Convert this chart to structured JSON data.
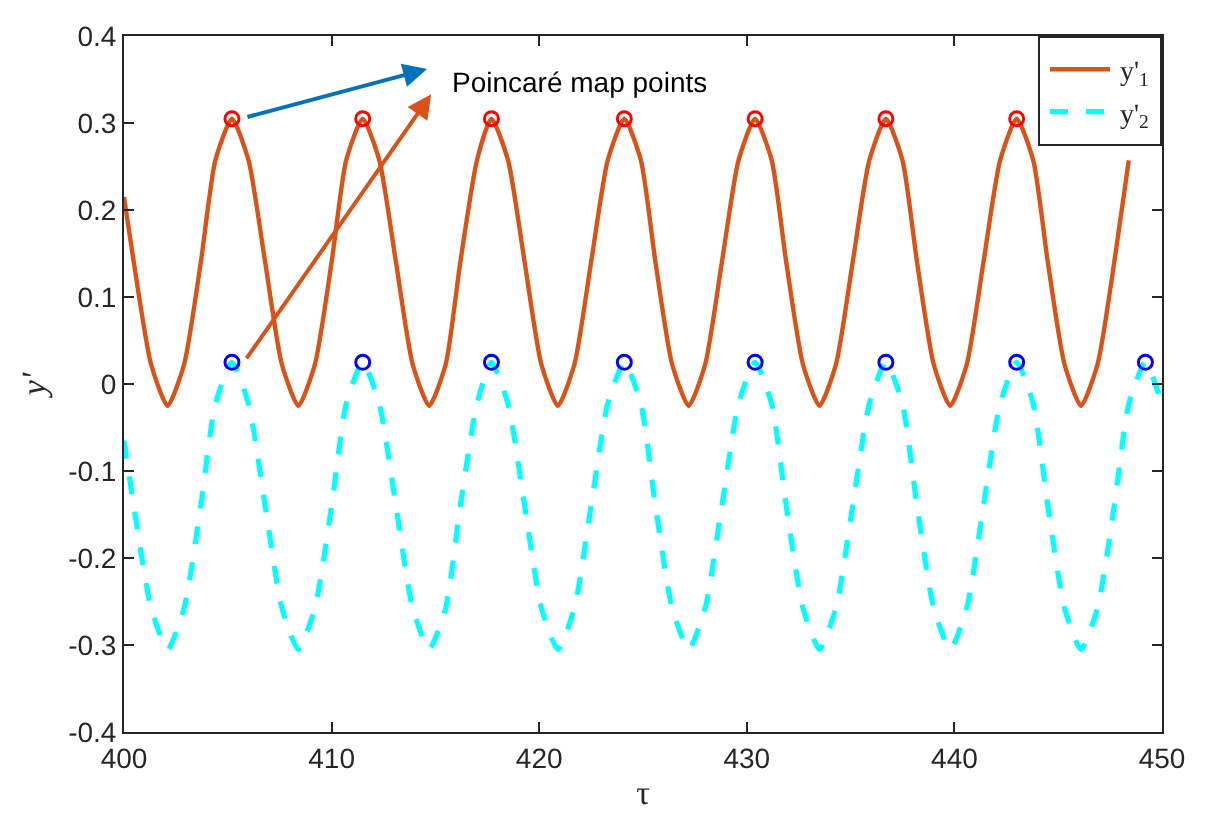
{
  "chart_data": {
    "type": "line",
    "xlabel": "τ",
    "ylabel": "y'",
    "x": [
      400,
      400.47,
      401.3,
      402.1,
      402.9,
      403.7,
      404.4,
      405.2,
      406.0,
      406.8,
      407.6,
      408.4,
      409.2,
      410.0,
      410.7,
      411.5,
      412.3,
      413.1,
      413.9,
      414.7,
      415.5,
      416.2,
      417.0,
      417.7,
      418.5,
      419.3,
      420.1,
      420.9,
      421.7,
      422.5,
      423.3,
      424.1,
      424.9,
      425.6,
      426.4,
      427.2,
      428.0,
      428.8,
      429.6,
      430.4,
      431.2,
      431.9,
      432.7,
      433.5,
      434.3,
      435.1,
      435.9,
      436.7,
      437.5,
      438.2,
      439.0,
      439.8,
      440.6,
      441.4,
      442.2,
      443.0,
      443.8,
      444.5,
      445.3,
      446.1,
      446.9,
      447.7,
      448.4,
      449.2,
      450
    ],
    "series": [
      {
        "name": "y'$_{1}$",
        "color": "#d95319",
        "line_style": "solid",
        "values": [
          0.215,
          0.14,
          0.023,
          -0.025,
          0.023,
          0.14,
          0.257,
          0.305,
          0.257,
          0.14,
          0.023,
          -0.025,
          0.023,
          0.14,
          0.257,
          0.305,
          0.257,
          0.14,
          0.023,
          -0.025,
          0.023,
          0.14,
          0.257,
          0.305,
          0.257,
          0.14,
          0.023,
          -0.025,
          0.023,
          0.14,
          0.257,
          0.305,
          0.257,
          0.14,
          0.023,
          -0.025,
          0.023,
          0.14,
          0.257,
          0.305,
          0.257,
          0.14,
          0.023,
          -0.025,
          0.023,
          0.14,
          0.257,
          0.305,
          0.257,
          0.14,
          0.023,
          -0.025,
          0.023,
          0.14,
          0.257,
          0.305,
          0.257,
          0.14,
          0.023,
          -0.025,
          0.023,
          0.14,
          0.257,
          null,
          null
        ]
      },
      {
        "name": "y'$_{2}$",
        "color": "#00ffff",
        "line_style": "dashed",
        "values": [
          -0.065,
          -0.14,
          -0.257,
          -0.305,
          -0.257,
          -0.14,
          -0.023,
          0.025,
          -0.023,
          -0.14,
          -0.257,
          -0.305,
          -0.257,
          -0.14,
          -0.023,
          0.025,
          -0.023,
          -0.14,
          -0.257,
          -0.305,
          -0.257,
          -0.14,
          -0.023,
          0.025,
          -0.023,
          -0.14,
          -0.257,
          -0.305,
          -0.257,
          -0.14,
          -0.023,
          0.025,
          -0.023,
          -0.14,
          -0.257,
          -0.305,
          -0.257,
          -0.14,
          -0.023,
          0.025,
          -0.023,
          -0.14,
          -0.257,
          -0.305,
          -0.257,
          -0.14,
          -0.023,
          0.025,
          -0.023,
          -0.14,
          -0.257,
          -0.305,
          -0.257,
          -0.14,
          -0.023,
          0.025,
          -0.023,
          -0.14,
          -0.257,
          -0.305,
          -0.257,
          -0.14,
          -0.023,
          0.025,
          -0.023
        ]
      },
      {
        "type": "scatter",
        "marker": "circle",
        "color": "#ff0000",
        "x": [
          405.2,
          411.5,
          417.7,
          424.1,
          430.4,
          436.7,
          443.0
        ],
        "values": [
          0.305,
          0.305,
          0.305,
          0.305,
          0.305,
          0.305,
          0.305
        ]
      },
      {
        "type": "scatter",
        "marker": "circle",
        "color": "#0000ff",
        "x": [
          405.2,
          411.5,
          417.7,
          424.1,
          430.4,
          436.7,
          443.0,
          449.2
        ],
        "values": [
          0.025,
          0.025,
          0.025,
          0.025,
          0.025,
          0.025,
          0.025,
          0.025
        ]
      }
    ],
    "annotations": [
      "Poincaré map points"
    ],
    "xlim": [
      400,
      450
    ],
    "xticks": [
      400,
      410,
      420,
      430,
      440,
      450
    ],
    "ylim": [
      -0.4,
      0.4
    ],
    "yticks": [
      -0.4,
      -0.3,
      -0.2,
      -0.1,
      0,
      0.1,
      0.2,
      0.3,
      0.4
    ],
    "grid": false,
    "legend": "top right",
    "marker": "none"
  }
}
